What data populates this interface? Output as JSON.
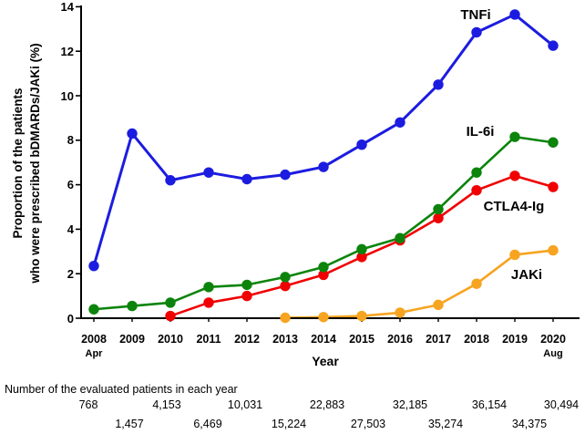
{
  "figure": {
    "y_axis_title_line1": "Proportion of the patients",
    "y_axis_title_line2": "who were prescribed bDMARDs/JAKi (%)",
    "x_axis_title": "Year",
    "first_year_sub_label": "Apr",
    "last_year_sub_label": "Aug"
  },
  "chart_data": {
    "type": "line",
    "title": "",
    "xlabel": "Year",
    "ylabel": "Proportion of the patients who were prescribed bDMARDs/JAKi (%)",
    "categories": [
      "2008",
      "2009",
      "2010",
      "2011",
      "2012",
      "2013",
      "2014",
      "2015",
      "2016",
      "2017",
      "2018",
      "2019",
      "2020"
    ],
    "x_sub_labels": {
      "2008": "Apr",
      "2020": "Aug"
    },
    "ylim": [
      0,
      14
    ],
    "yticks": [
      0,
      2,
      4,
      6,
      8,
      10,
      12,
      14
    ],
    "grid": false,
    "legend_position": "inline-labels-right",
    "series": [
      {
        "name": "TNFi",
        "color": "#1c1ce0",
        "values": [
          2.35,
          8.3,
          6.2,
          6.55,
          6.25,
          6.45,
          6.8,
          7.8,
          8.8,
          10.5,
          12.85,
          13.65,
          12.25
        ]
      },
      {
        "name": "IL-6i",
        "color": "#0c840c",
        "values": [
          0.4,
          0.55,
          0.7,
          1.4,
          1.5,
          1.85,
          2.3,
          3.1,
          3.6,
          4.9,
          6.55,
          8.15,
          7.9
        ]
      },
      {
        "name": "CTLA4-Ig",
        "color": "#f00000",
        "values": [
          null,
          null,
          0.1,
          0.7,
          1.0,
          1.45,
          1.95,
          2.75,
          3.5,
          4.5,
          5.75,
          6.4,
          5.9
        ]
      },
      {
        "name": "JAKi",
        "color": "#f7a420",
        "values": [
          null,
          null,
          null,
          null,
          null,
          0.02,
          0.05,
          0.1,
          0.25,
          0.6,
          1.55,
          2.85,
          3.05
        ]
      }
    ]
  },
  "footnote": {
    "header": "Number of the evaluated patients in each year",
    "row1": [
      "768",
      "4,153",
      "10,031",
      "22,883",
      "32,185",
      "36,154",
      "30,494"
    ],
    "row2": [
      "1,457",
      "6,469",
      "15,224",
      "27,503",
      "35,274",
      "34,375"
    ]
  }
}
